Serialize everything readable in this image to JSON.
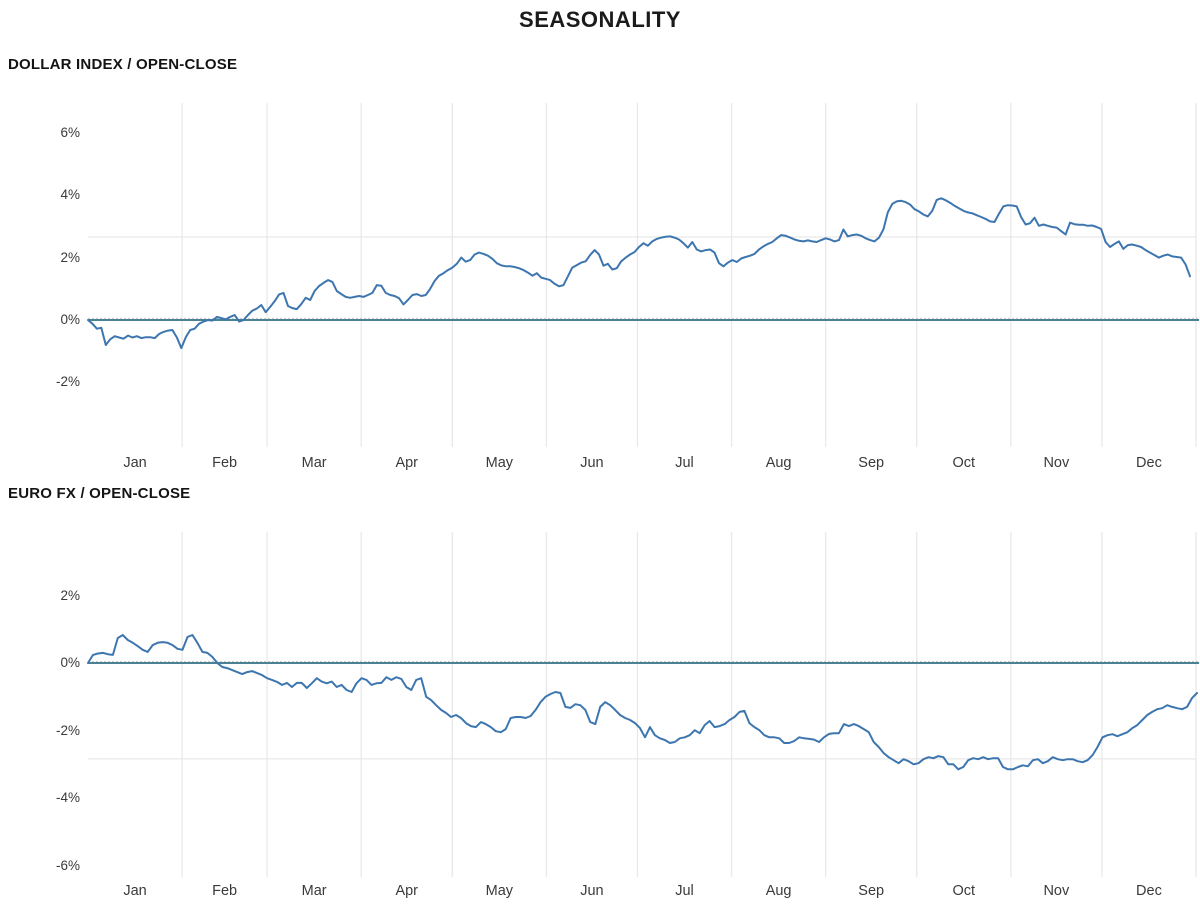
{
  "title": "SEASONALITY",
  "months": [
    "Jan",
    "Feb",
    "Mar",
    "Apr",
    "May",
    "Jun",
    "Jul",
    "Aug",
    "Sep",
    "Oct",
    "Nov",
    "Dec"
  ],
  "colors": {
    "line": "#3d76af",
    "zero_line": "#4a8194",
    "grid": "#e9e9e9",
    "faint_level_line": "#e3e3e3",
    "zero_dash": "#c8c8c8",
    "text": "#3a3a3a",
    "heading": "#141414"
  },
  "chart_data": [
    {
      "type": "line",
      "title": "DOLLAR INDEX / OPEN-CLOSE",
      "xlabel": "",
      "ylabel": "",
      "categories": [
        "Jan",
        "Feb",
        "Mar",
        "Apr",
        "May",
        "Jun",
        "Jul",
        "Aug",
        "Sep",
        "Oct",
        "Nov",
        "Dec"
      ],
      "y_tick_labels": [
        "6%",
        "4%",
        "2%",
        "0%",
        "-2%"
      ],
      "y_tick_values": [
        6,
        4,
        2,
        0,
        -2
      ],
      "ylim": [
        -4.1,
        7.0
      ],
      "grid": "monthly-vertical",
      "zero_line": true,
      "faint_level": 2.66,
      "legend": "none",
      "series": [
        {
          "name": "Dollar Index open-close seasonality (%)",
          "values": [
            0,
            -0.12,
            -0.28,
            -0.25,
            -0.8,
            -0.62,
            -0.52,
            -0.56,
            -0.6,
            -0.5,
            -0.56,
            -0.52,
            -0.58,
            -0.55,
            -0.55,
            -0.58,
            -0.45,
            -0.38,
            -0.34,
            -0.32,
            -0.56,
            -0.9,
            -0.55,
            -0.32,
            -0.28,
            -0.12,
            -0.05,
            0,
            -0.02,
            0.1,
            0.06,
            0.02,
            0.1,
            0.16,
            -0.05,
            0,
            0.16,
            0.3,
            0.37,
            0.48,
            0.25,
            0.42,
            0.6,
            0.82,
            0.87,
            0.45,
            0.38,
            0.35,
            0.51,
            0.71,
            0.64,
            0.93,
            1.09,
            1.19,
            1.28,
            1.22,
            0.93,
            0.83,
            0.74,
            0.71,
            0.74,
            0.77,
            0.74,
            0.8,
            0.87,
            1.12,
            1.1,
            0.87,
            0.8,
            0.77,
            0.7,
            0.5,
            0.64,
            0.8,
            0.83,
            0.77,
            0.8,
            1,
            1.25,
            1.42,
            1.5,
            1.6,
            1.68,
            1.8,
            2,
            1.87,
            1.92,
            2.1,
            2.16,
            2.12,
            2.06,
            1.96,
            1.82,
            1.75,
            1.72,
            1.72,
            1.7,
            1.66,
            1.6,
            1.52,
            1.42,
            1.5,
            1.36,
            1.32,
            1.28,
            1.16,
            1.08,
            1.12,
            1.4,
            1.68,
            1.76,
            1.84,
            1.88,
            2.08,
            2.24,
            2.1,
            1.74,
            1.8,
            1.62,
            1.66,
            1.88,
            2,
            2.1,
            2.18,
            2.34,
            2.46,
            2.38,
            2.52,
            2.6,
            2.64,
            2.67,
            2.68,
            2.64,
            2.58,
            2.46,
            2.32,
            2.5,
            2.26,
            2.2,
            2.24,
            2.26,
            2.16,
            1.82,
            1.72,
            1.84,
            1.92,
            1.86,
            1.97,
            2.02,
            2.06,
            2.12,
            2.26,
            2.36,
            2.44,
            2.5,
            2.62,
            2.72,
            2.7,
            2.64,
            2.58,
            2.54,
            2.52,
            2.55,
            2.52,
            2.5,
            2.56,
            2.62,
            2.58,
            2.52,
            2.56,
            2.9,
            2.68,
            2.72,
            2.74,
            2.7,
            2.62,
            2.56,
            2.52,
            2.64,
            2.9,
            3.45,
            3.72,
            3.8,
            3.82,
            3.78,
            3.7,
            3.55,
            3.48,
            3.38,
            3.32,
            3.5,
            3.85,
            3.9,
            3.84,
            3.76,
            3.66,
            3.58,
            3.5,
            3.45,
            3.42,
            3.36,
            3.3,
            3.24,
            3.16,
            3.14,
            3.4,
            3.64,
            3.68,
            3.67,
            3.64,
            3.3,
            3.06,
            3.1,
            3.28,
            3.02,
            3.06,
            3.02,
            2.98,
            2.96,
            2.85,
            2.74,
            3.12,
            3.07,
            3.05,
            3.05,
            3.02,
            3.03,
            2.98,
            2.92,
            2.5,
            2.34,
            2.44,
            2.52,
            2.28,
            2.4,
            2.42,
            2.38,
            2.34,
            2.24,
            2.16,
            2.08,
            2,
            2.06,
            2.1,
            2.04,
            2.02,
            2,
            1.78,
            1.4
          ]
        }
      ]
    },
    {
      "type": "line",
      "title": "EURO FX / OPEN-CLOSE",
      "xlabel": "",
      "ylabel": "",
      "categories": [
        "Jan",
        "Feb",
        "Mar",
        "Apr",
        "May",
        "Jun",
        "Jul",
        "Aug",
        "Sep",
        "Oct",
        "Nov",
        "Dec"
      ],
      "y_tick_labels": [
        "2%",
        "0%",
        "-2%",
        "-4%",
        "-6%"
      ],
      "y_tick_values": [
        2,
        0,
        -2,
        -4,
        -6
      ],
      "ylim": [
        -6.35,
        3.9
      ],
      "grid": "monthly-vertical",
      "zero_line": true,
      "faint_level": -2.84,
      "legend": "none",
      "series": [
        {
          "name": "Euro FX open-close seasonality (%)",
          "values": [
            0,
            0.24,
            0.28,
            0.3,
            0.26,
            0.24,
            0.74,
            0.83,
            0.68,
            0.6,
            0.5,
            0.39,
            0.33,
            0.53,
            0.6,
            0.62,
            0.6,
            0.53,
            0.42,
            0.39,
            0.77,
            0.83,
            0.6,
            0.33,
            0.3,
            0.18,
            0,
            -0.12,
            -0.15,
            -0.21,
            -0.27,
            -0.33,
            -0.27,
            -0.24,
            -0.3,
            -0.36,
            -0.45,
            -0.5,
            -0.56,
            -0.65,
            -0.59,
            -0.71,
            -0.59,
            -0.59,
            -0.74,
            -0.6,
            -0.45,
            -0.55,
            -0.6,
            -0.55,
            -0.71,
            -0.65,
            -0.8,
            -0.86,
            -0.6,
            -0.45,
            -0.5,
            -0.65,
            -0.6,
            -0.59,
            -0.42,
            -0.5,
            -0.42,
            -0.47,
            -0.71,
            -0.8,
            -0.5,
            -0.45,
            -1,
            -1.1,
            -1.25,
            -1.39,
            -1.48,
            -1.6,
            -1.54,
            -1.63,
            -1.78,
            -1.87,
            -1.9,
            -1.75,
            -1.81,
            -1.9,
            -2.02,
            -2.05,
            -1.96,
            -1.63,
            -1.6,
            -1.6,
            -1.63,
            -1.57,
            -1.39,
            -1.16,
            -1,
            -0.92,
            -0.86,
            -0.89,
            -1.3,
            -1.33,
            -1.22,
            -1.25,
            -1.39,
            -1.75,
            -1.81,
            -1.3,
            -1.16,
            -1.25,
            -1.39,
            -1.54,
            -1.63,
            -1.69,
            -1.78,
            -1.93,
            -2.2,
            -1.9,
            -2.14,
            -2.23,
            -2.28,
            -2.37,
            -2.34,
            -2.23,
            -2.2,
            -2.14,
            -1.99,
            -2.08,
            -1.84,
            -1.72,
            -1.9,
            -1.87,
            -1.81,
            -1.69,
            -1.6,
            -1.45,
            -1.42,
            -1.78,
            -1.9,
            -1.99,
            -2.14,
            -2.2,
            -2.2,
            -2.23,
            -2.37,
            -2.37,
            -2.31,
            -2.2,
            -2.23,
            -2.25,
            -2.27,
            -2.34,
            -2.2,
            -2.1,
            -2.08,
            -2.08,
            -1.81,
            -1.87,
            -1.81,
            -1.87,
            -1.96,
            -2.05,
            -2.34,
            -2.49,
            -2.67,
            -2.79,
            -2.88,
            -2.97,
            -2.85,
            -2.91,
            -3,
            -2.97,
            -2.85,
            -2.79,
            -2.82,
            -2.76,
            -2.79,
            -3,
            -3,
            -3.15,
            -3.08,
            -2.88,
            -2.82,
            -2.85,
            -2.79,
            -2.85,
            -2.82,
            -2.82,
            -3.08,
            -3.15,
            -3.15,
            -3.08,
            -3.03,
            -3.06,
            -2.88,
            -2.85,
            -2.97,
            -2.91,
            -2.79,
            -2.85,
            -2.88,
            -2.85,
            -2.85,
            -2.91,
            -2.94,
            -2.88,
            -2.73,
            -2.49,
            -2.2,
            -2.14,
            -2.11,
            -2.17,
            -2.11,
            -2.05,
            -1.93,
            -1.84,
            -1.69,
            -1.54,
            -1.45,
            -1.37,
            -1.34,
            -1.25,
            -1.3,
            -1.34,
            -1.37,
            -1.3,
            -1.04,
            -0.89
          ]
        }
      ]
    }
  ]
}
